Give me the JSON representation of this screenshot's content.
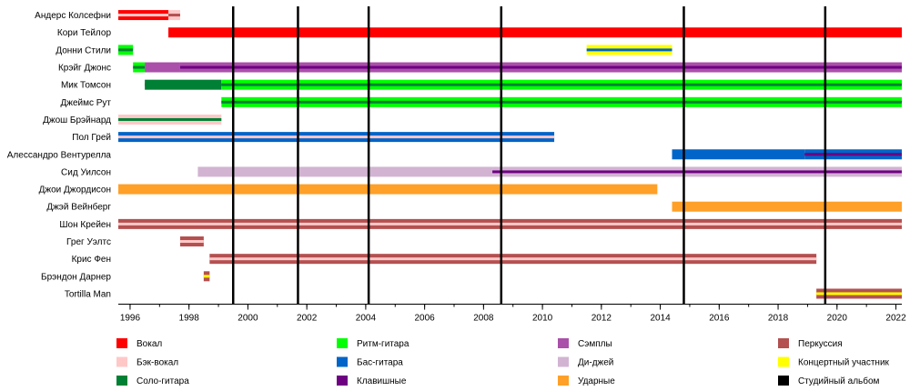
{
  "chart_data": {
    "type": "timeline",
    "title": "",
    "xlim": [
      1995.6,
      2022.2
    ],
    "x_ticks": [
      1996,
      1998,
      2000,
      2002,
      2004,
      2006,
      2008,
      2010,
      2012,
      2014,
      2016,
      2018,
      2020,
      2022
    ],
    "roles": [
      {
        "key": "vocals",
        "name": "Вокал",
        "color": "#ff0000"
      },
      {
        "key": "backing",
        "name": "Бэк-вокал",
        "color": "#ffc8c8"
      },
      {
        "key": "lead",
        "name": "Соло-гитара",
        "color": "#008034"
      },
      {
        "key": "rhythm",
        "name": "Ритм-гитара",
        "color": "#00ff00"
      },
      {
        "key": "bass",
        "name": "Бас-гитара",
        "color": "#0064c8"
      },
      {
        "key": "keys",
        "name": "Клавишные",
        "color": "#6e0082"
      },
      {
        "key": "samples",
        "name": "Сэмплы",
        "color": "#aa50aa"
      },
      {
        "key": "dj",
        "name": "Ди-джей",
        "color": "#d2b4d2"
      },
      {
        "key": "drums",
        "name": "Ударные",
        "color": "#ffa028"
      },
      {
        "key": "perc",
        "name": "Перкуссия",
        "color": "#b45050"
      },
      {
        "key": "touring",
        "name": "Концертный участник",
        "color": "#ffff00"
      },
      {
        "key": "album",
        "name": "Студийный альбом",
        "color": "#000000"
      }
    ],
    "albums": [
      1999.5,
      2001.7,
      2004.1,
      2008.6,
      2014.8,
      2019.6
    ],
    "members": [
      {
        "name": "Андерс Колсефни",
        "bars": [
          {
            "start": 1995.6,
            "end": 1997.3,
            "role": "vocals",
            "accent": "backing"
          },
          {
            "start": 1997.3,
            "end": 1997.7,
            "role": "backing",
            "accent": "perc"
          }
        ]
      },
      {
        "name": "Кори Тейлор",
        "bars": [
          {
            "start": 1997.3,
            "end": 2022.2,
            "role": "vocals",
            "accent": ""
          }
        ]
      },
      {
        "name": "Донни Стили",
        "bars": [
          {
            "start": 1995.6,
            "end": 1996.1,
            "role": "rhythm",
            "accent": "lead"
          },
          {
            "start": 2011.5,
            "end": 2014.4,
            "role": "touring",
            "accent": "bass"
          }
        ]
      },
      {
        "name": "Крэйг Джонс",
        "bars": [
          {
            "start": 1996.1,
            "end": 1996.5,
            "role": "rhythm",
            "accent": "lead"
          },
          {
            "start": 1996.5,
            "end": 1997.7,
            "role": "samples",
            "accent": ""
          },
          {
            "start": 1997.7,
            "end": 2022.2,
            "role": "samples",
            "accent": "keys"
          }
        ]
      },
      {
        "name": "Мик Томсон",
        "bars": [
          {
            "start": 1996.5,
            "end": 1999.1,
            "role": "lead",
            "accent": "lead"
          },
          {
            "start": 1999.1,
            "end": 2022.2,
            "role": "rhythm",
            "accent": "lead"
          }
        ]
      },
      {
        "name": "Джеймс Рут",
        "bars": [
          {
            "start": 1999.1,
            "end": 2022.2,
            "role": "rhythm",
            "accent": "lead"
          }
        ]
      },
      {
        "name": "Джош Брэйнард",
        "bars": [
          {
            "start": 1995.6,
            "end": 1999.1,
            "role": "backing",
            "accent": "lead"
          }
        ]
      },
      {
        "name": "Пол Грей",
        "bars": [
          {
            "start": 1995.6,
            "end": 2010.4,
            "role": "bass",
            "accent": "backing"
          }
        ]
      },
      {
        "name": "Алессандро Вентурелла",
        "bars": [
          {
            "start": 2014.4,
            "end": 2018.9,
            "role": "bass",
            "accent": ""
          },
          {
            "start": 2018.9,
            "end": 2022.2,
            "role": "bass",
            "accent": "keys"
          }
        ]
      },
      {
        "name": "Сид Уилсон",
        "bars": [
          {
            "start": 1998.3,
            "end": 2008.3,
            "role": "dj",
            "accent": ""
          },
          {
            "start": 2008.3,
            "end": 2022.2,
            "role": "dj",
            "accent": "keys"
          }
        ]
      },
      {
        "name": "Джои Джордисон",
        "bars": [
          {
            "start": 1995.6,
            "end": 2013.9,
            "role": "drums",
            "accent": ""
          }
        ]
      },
      {
        "name": "Джэй Вейнберг",
        "bars": [
          {
            "start": 2014.4,
            "end": 2022.2,
            "role": "drums",
            "accent": ""
          }
        ]
      },
      {
        "name": "Шон Крейен",
        "bars": [
          {
            "start": 1995.6,
            "end": 2022.2,
            "role": "perc",
            "accent": "backing"
          }
        ]
      },
      {
        "name": "Грег Уэлтс",
        "bars": [
          {
            "start": 1997.7,
            "end": 1998.5,
            "role": "perc",
            "accent": "backing"
          }
        ]
      },
      {
        "name": "Крис Фен",
        "bars": [
          {
            "start": 1998.7,
            "end": 2019.3,
            "role": "perc",
            "accent": "backing"
          }
        ]
      },
      {
        "name": "Брэндон Дарнер",
        "bars": [
          {
            "start": 1998.5,
            "end": 1998.7,
            "role": "perc",
            "accent": "touring"
          }
        ]
      },
      {
        "name": "Tortilla Man",
        "bars": [
          {
            "start": 2019.3,
            "end": 2022.2,
            "role": "perc",
            "accent": "touring"
          }
        ]
      }
    ]
  }
}
